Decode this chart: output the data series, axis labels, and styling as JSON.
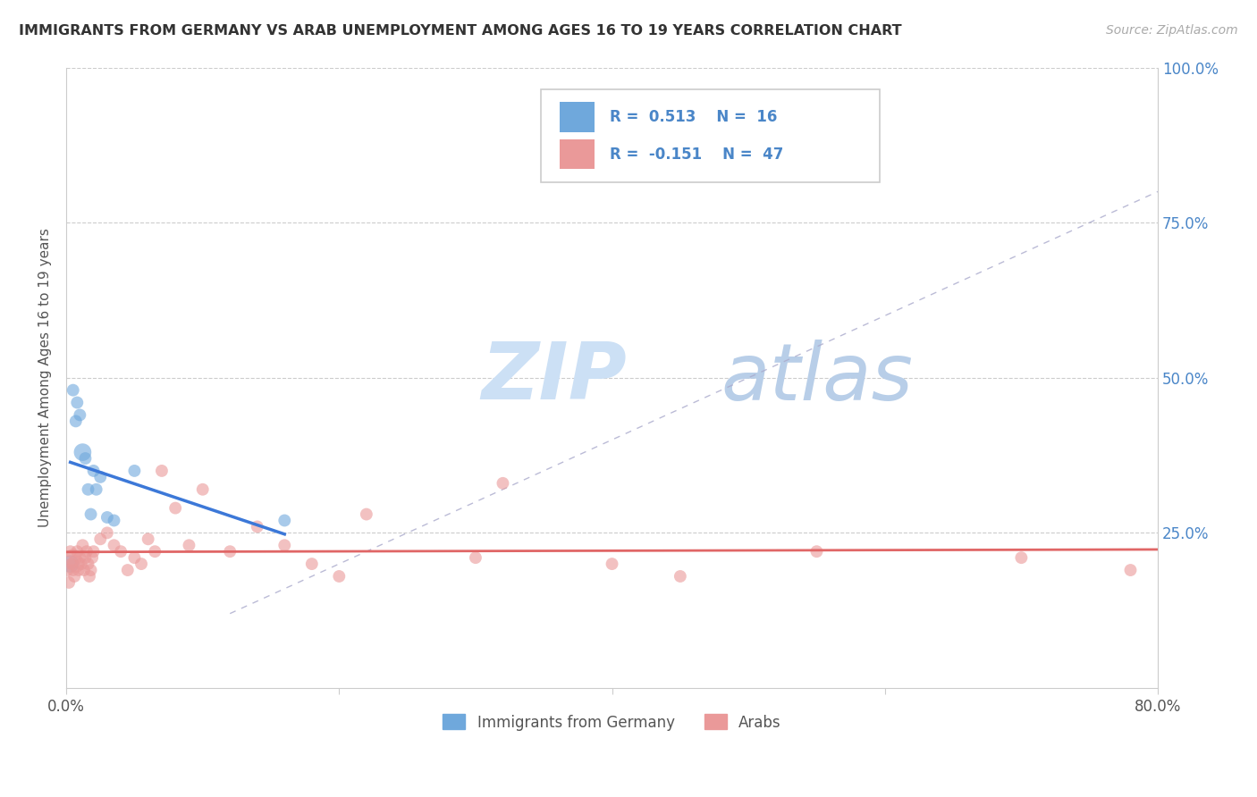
{
  "title": "IMMIGRANTS FROM GERMANY VS ARAB UNEMPLOYMENT AMONG AGES 16 TO 19 YEARS CORRELATION CHART",
  "source": "Source: ZipAtlas.com",
  "ylabel": "Unemployment Among Ages 16 to 19 years",
  "ylim": [
    0,
    1.0
  ],
  "xlim": [
    0,
    0.8
  ],
  "yticks": [
    0.0,
    0.25,
    0.5,
    0.75,
    1.0
  ],
  "xticks": [
    0.0,
    0.2,
    0.4,
    0.6,
    0.8
  ],
  "ytick_labels_right": [
    "",
    "25.0%",
    "50.0%",
    "75.0%",
    "100.0%"
  ],
  "xtick_labels": [
    "0.0%",
    "",
    "",
    "",
    "80.0%"
  ],
  "legend_labels": [
    "Immigrants from Germany",
    "Arabs"
  ],
  "R_germany": 0.513,
  "N_germany": 16,
  "R_arab": -0.151,
  "N_arab": 47,
  "blue_color": "#6fa8dc",
  "pink_color": "#ea9999",
  "blue_line_color": "#3c78d8",
  "pink_line_color": "#e06666",
  "blue_dark": "#4a86c8",
  "watermark_zip_color": "#c8dff5",
  "watermark_atlas_color": "#b0c8e8",
  "grid_color": "#cccccc",
  "germany_x": [
    0.003,
    0.005,
    0.007,
    0.008,
    0.01,
    0.012,
    0.014,
    0.016,
    0.018,
    0.02,
    0.022,
    0.025,
    0.03,
    0.035,
    0.05,
    0.16
  ],
  "germany_y": [
    0.2,
    0.48,
    0.43,
    0.46,
    0.44,
    0.38,
    0.37,
    0.32,
    0.28,
    0.35,
    0.32,
    0.34,
    0.275,
    0.27,
    0.35,
    0.27
  ],
  "germany_sizes": [
    200,
    100,
    100,
    100,
    100,
    200,
    100,
    100,
    100,
    100,
    100,
    100,
    100,
    100,
    100,
    100
  ],
  "arab_x": [
    0.001,
    0.002,
    0.003,
    0.004,
    0.005,
    0.005,
    0.006,
    0.007,
    0.008,
    0.009,
    0.01,
    0.011,
    0.012,
    0.013,
    0.014,
    0.015,
    0.016,
    0.017,
    0.018,
    0.019,
    0.02,
    0.025,
    0.03,
    0.035,
    0.04,
    0.045,
    0.05,
    0.055,
    0.06,
    0.065,
    0.07,
    0.08,
    0.09,
    0.1,
    0.12,
    0.14,
    0.16,
    0.18,
    0.2,
    0.22,
    0.3,
    0.32,
    0.4,
    0.45,
    0.55,
    0.7,
    0.78
  ],
  "arab_y": [
    0.19,
    0.17,
    0.22,
    0.2,
    0.21,
    0.19,
    0.18,
    0.2,
    0.22,
    0.19,
    0.21,
    0.2,
    0.23,
    0.19,
    0.21,
    0.22,
    0.2,
    0.18,
    0.19,
    0.21,
    0.22,
    0.24,
    0.25,
    0.23,
    0.22,
    0.19,
    0.21,
    0.2,
    0.24,
    0.22,
    0.35,
    0.29,
    0.23,
    0.32,
    0.22,
    0.26,
    0.23,
    0.2,
    0.18,
    0.28,
    0.21,
    0.33,
    0.2,
    0.18,
    0.22,
    0.21,
    0.19
  ],
  "arab_sizes": [
    100,
    100,
    100,
    100,
    200,
    100,
    100,
    200,
    100,
    100,
    100,
    100,
    100,
    100,
    100,
    100,
    100,
    100,
    100,
    100,
    100,
    100,
    100,
    100,
    100,
    100,
    100,
    100,
    100,
    100,
    100,
    100,
    100,
    100,
    100,
    100,
    100,
    100,
    100,
    100,
    100,
    100,
    100,
    100,
    100,
    100,
    100
  ]
}
